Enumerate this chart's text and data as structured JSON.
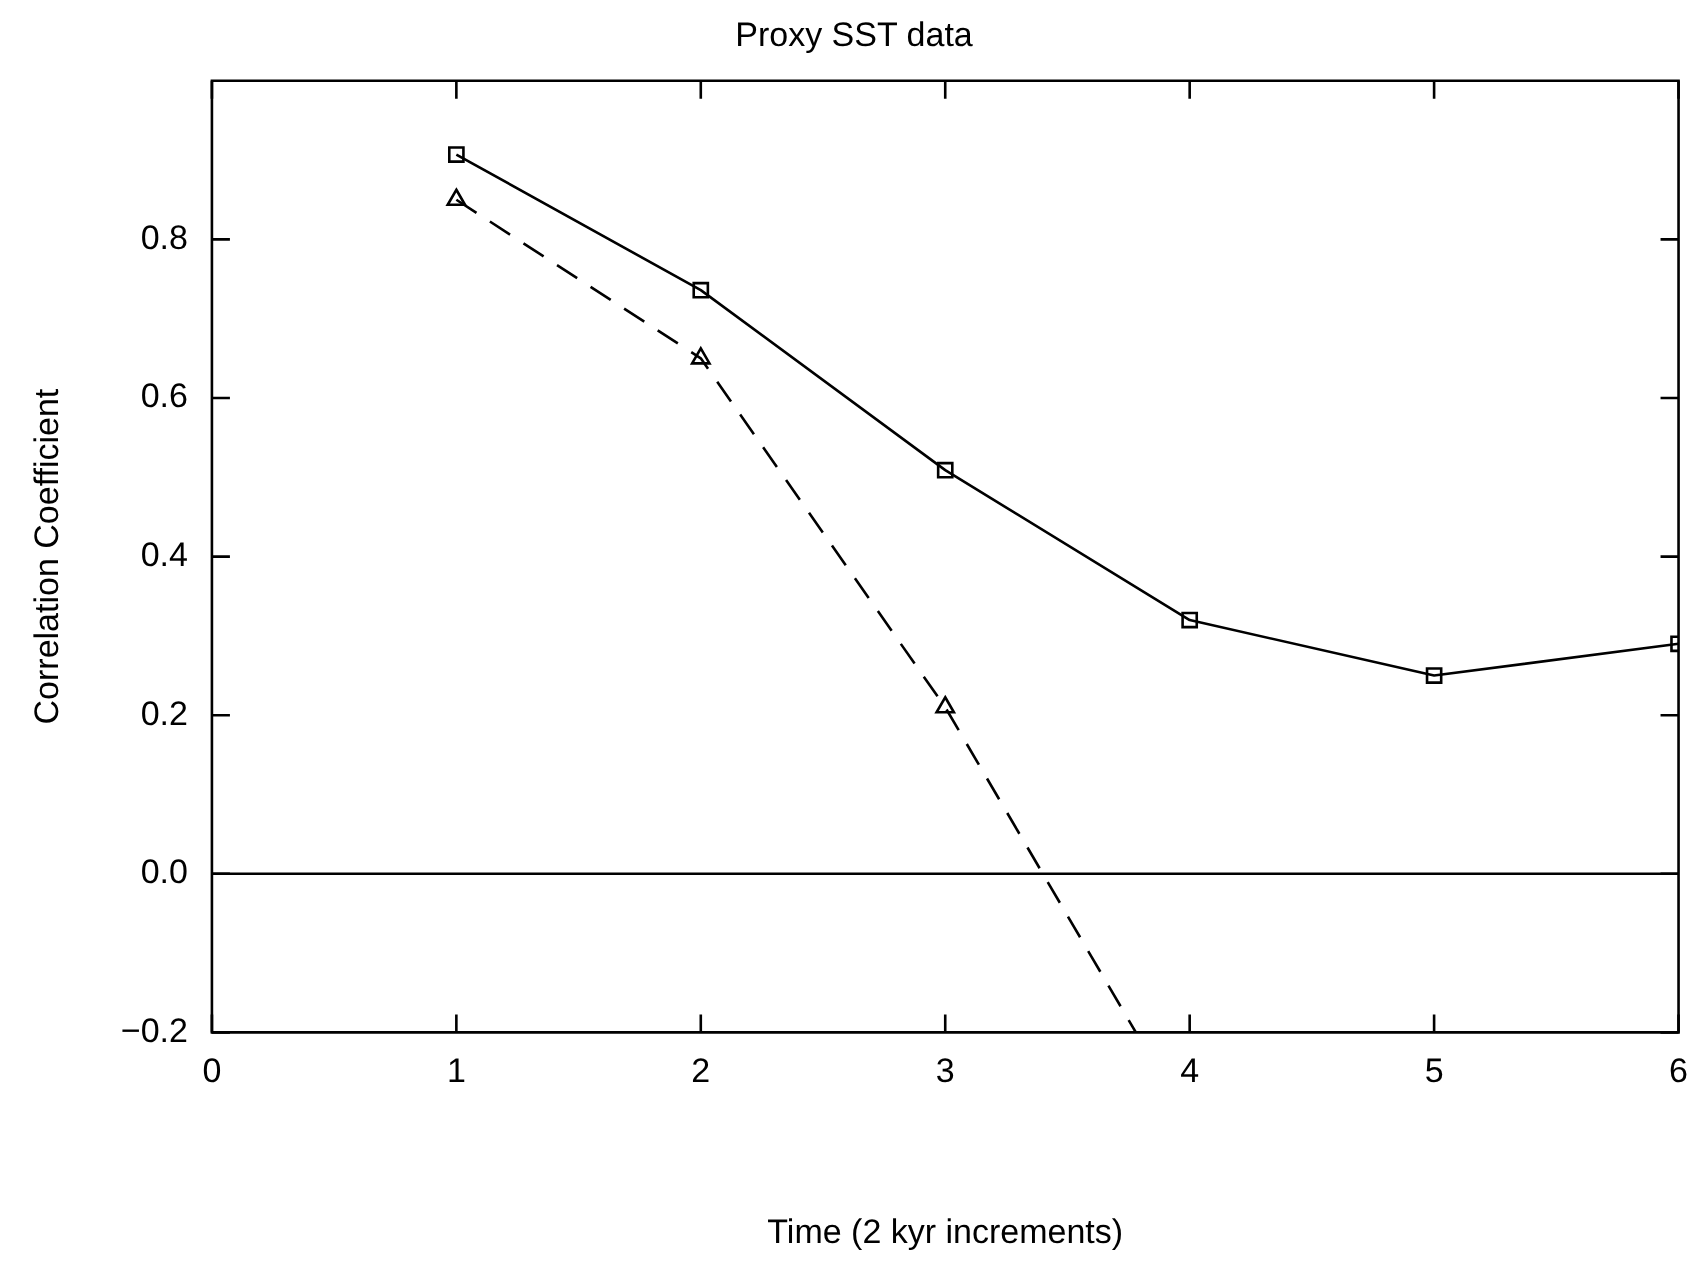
{
  "chart_data": {
    "type": "line",
    "title": "Proxy SST data",
    "xlabel": "Time (2 kyr increments)",
    "ylabel": "Correlation Coefficient",
    "series": [
      {
        "color": "#000000",
        "x": [
          1,
          2,
          3,
          4,
          5,
          6
        ],
        "values": [
          0.907,
          0.736,
          0.509,
          0.32,
          0.25,
          0.29
        ],
        "marker": "square",
        "line_style": "solid"
      },
      {
        "color": "#000000",
        "x": [
          1,
          2,
          3,
          3.78
        ],
        "values": [
          0.85,
          0.65,
          0.21,
          -0.2
        ],
        "marker": "triangle",
        "line_style": "dashed"
      }
    ],
    "xlim": [
      0,
      6
    ],
    "xticks": [
      0,
      1,
      2,
      3,
      4,
      5,
      6
    ],
    "ylim": [
      -0.2,
      1.0
    ],
    "yticks": [
      {
        "value": -0.2,
        "label": "−0.2"
      },
      {
        "value": 0,
        "label": "0.0"
      },
      0.2,
      0.4,
      0.6,
      0.8
    ],
    "ref_lines": [
      {
        "axis": "y",
        "value": 0,
        "color": "#000000",
        "line_style": "solid"
      }
    ],
    "grid": false,
    "legend": false
  }
}
